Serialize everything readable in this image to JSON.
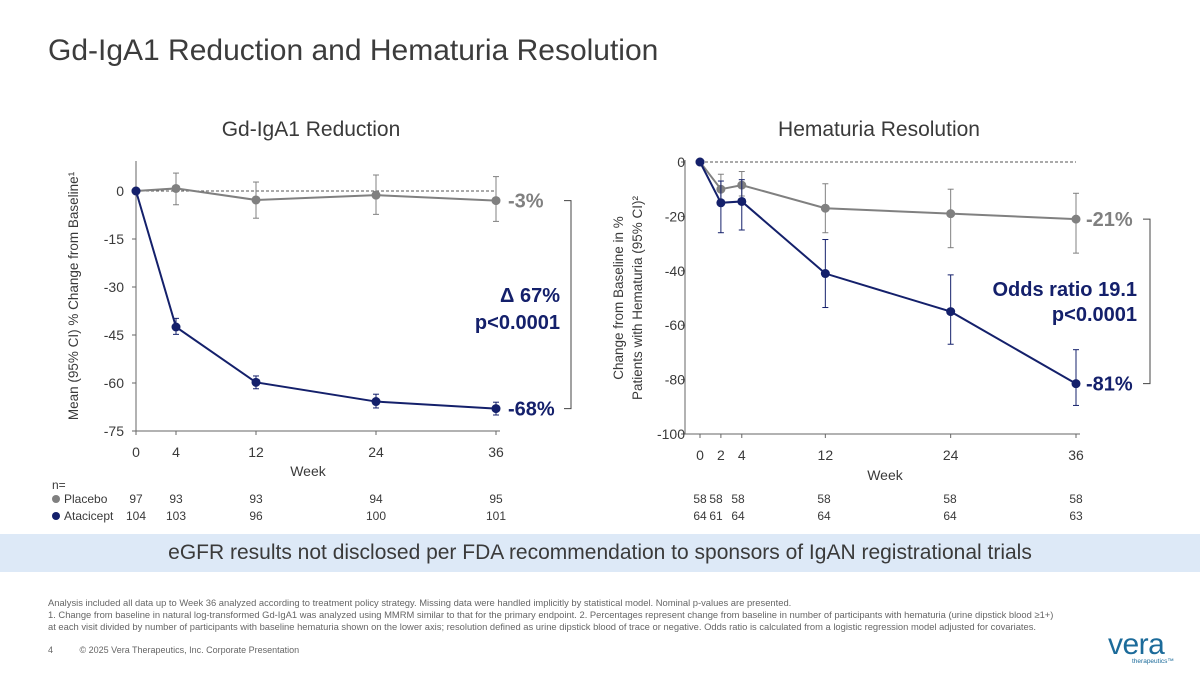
{
  "page": {
    "title": "Gd-IgA1 Reduction and Hematuria Resolution",
    "banner": "eGFR results not disclosed per FDA recommendation to sponsors of IgAN registrational trials",
    "footnotes": [
      "Analysis included all data up to Week 36 analyzed according to treatment policy strategy. Missing data were handled implicitly by statistical model. Nominal p-values are presented.",
      "1. Change from baseline in natural log-transformed Gd-IgA1 was analyzed using MMRM similar to that for the primary endpoint. 2. Percentages represent change from baseline in number of participants with hematuria (urine dipstick blood ≥1+)",
      "at each visit divided by number of participants with baseline hematuria shown on the lower axis; resolution defined as urine dipstick blood of trace or negative. Odds ratio is calculated from a logistic regression model adjusted for covariates."
    ],
    "page_number": "4",
    "copyright": "© 2025 Vera Therapeutics, Inc. Corporate Presentation",
    "logo": {
      "wordmark": "vera",
      "sub": "therapeutics™"
    }
  },
  "colors": {
    "placebo": "#808080",
    "atacicept": "#14206b",
    "banner": "#dde9f7",
    "text": "#3a3a3a"
  },
  "chart_data": [
    {
      "type": "line",
      "title": "Gd-IgA1 Reduction",
      "xlabel": "Week",
      "ylabel": "Mean (95% CI) % Change from Baseline¹",
      "xlim": [
        0,
        36
      ],
      "ylim": [
        -75,
        0
      ],
      "x_ticks": [
        0,
        4,
        12,
        24,
        36
      ],
      "y_ticks": [
        0,
        -15,
        -30,
        -45,
        -60,
        -75
      ],
      "reference_line": 0,
      "series": [
        {
          "name": "Placebo",
          "x": [
            0,
            4,
            12,
            24,
            36
          ],
          "values": [
            0,
            0.8,
            -2.8,
            -1.3,
            -3
          ],
          "ci_low": [
            0,
            -4.3,
            -8.5,
            -7.3,
            -9.5
          ],
          "ci_high": [
            0,
            5.6,
            2.8,
            5,
            4.5
          ]
        },
        {
          "name": "Atacicept",
          "x": [
            0,
            4,
            12,
            24,
            36
          ],
          "values": [
            0,
            -42.5,
            -59.8,
            -65.8,
            -68
          ],
          "ci_low": [
            0,
            -44.8,
            -61.8,
            -67.8,
            -70
          ],
          "ci_high": [
            0,
            -39.8,
            -57.8,
            -63.5,
            -66
          ]
        }
      ],
      "end_labels": [
        "-3%",
        "-68%"
      ],
      "annotation": [
        "Δ 67%",
        "p<0.0001"
      ],
      "n_table": {
        "header": "n=",
        "rows": [
          {
            "label": "Placebo",
            "values": [
              "97",
              "93",
              "93",
              "94",
              "95"
            ]
          },
          {
            "label": "Atacicept",
            "values": [
              "104",
              "103",
              "96",
              "100",
              "101"
            ]
          }
        ]
      }
    },
    {
      "type": "line",
      "title": "Hematuria Resolution",
      "xlabel": "Week",
      "ylabel": [
        "Change from Baseline in %",
        "Patients with Hematuria (95% CI)²"
      ],
      "xlim": [
        0,
        36
      ],
      "ylim": [
        -100,
        0
      ],
      "x_ticks": [
        0,
        2,
        4,
        12,
        24,
        36
      ],
      "y_ticks": [
        0,
        -20,
        -40,
        -60,
        -80,
        -100
      ],
      "reference_line": 0,
      "series": [
        {
          "name": "Placebo",
          "x": [
            0,
            2,
            4,
            12,
            24,
            36
          ],
          "values": [
            0,
            -10,
            -8.5,
            -17,
            -19,
            -21
          ],
          "ci_low": [
            0,
            -14,
            -12.5,
            -26,
            -31.5,
            -33.5
          ],
          "ci_high": [
            0,
            -4.5,
            -3.5,
            -8,
            -10,
            -11.5
          ]
        },
        {
          "name": "Atacicept",
          "x": [
            0,
            2,
            4,
            12,
            24,
            36
          ],
          "values": [
            0,
            -15,
            -14.5,
            -41,
            -55,
            -81.5
          ],
          "ci_low": [
            0,
            -26,
            -25,
            -53.5,
            -67,
            -89.5
          ],
          "ci_high": [
            0,
            -7,
            -6.5,
            -28.5,
            -41.5,
            -69
          ]
        }
      ],
      "end_labels": [
        "-21%",
        "-81%"
      ],
      "annotation": [
        "Odds ratio 19.1",
        "p<0.0001"
      ],
      "n_table": {
        "rows": [
          {
            "label": "Placebo",
            "values": [
              "58",
              "58",
              "58",
              "58",
              "58",
              "58"
            ]
          },
          {
            "label": "Atacicept",
            "values": [
              "64",
              "61",
              "64",
              "64",
              "64",
              "63"
            ]
          }
        ]
      }
    }
  ]
}
